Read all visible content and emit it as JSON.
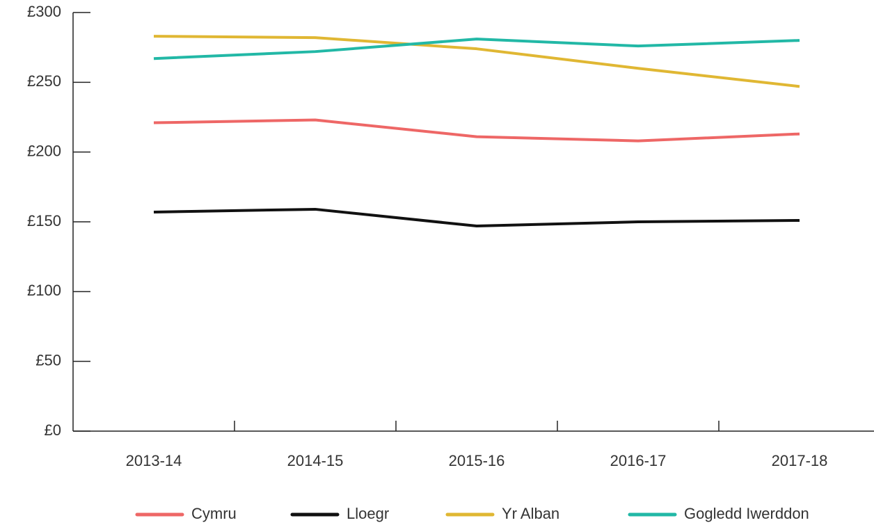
{
  "chart_data": {
    "type": "line",
    "categories": [
      "2013-14",
      "2014-15",
      "2015-16",
      "2016-17",
      "2017-18"
    ],
    "series": [
      {
        "name": "Cymru",
        "color": "#ee6766",
        "values": [
          221,
          223,
          211,
          208,
          213
        ]
      },
      {
        "name": "Lloegr",
        "color": "#111111",
        "values": [
          157,
          159,
          147,
          150,
          151
        ]
      },
      {
        "name": "Yr Alban",
        "color": "#e0b733",
        "values": [
          283,
          282,
          274,
          260,
          247
        ]
      },
      {
        "name": "Gogledd Iwerddon",
        "color": "#22b8a6",
        "values": [
          267,
          272,
          281,
          276,
          280
        ]
      }
    ],
    "ylim": [
      0,
      300
    ],
    "yticks": [
      {
        "value": 0,
        "label": "£0"
      },
      {
        "value": 50,
        "label": "£50"
      },
      {
        "value": 100,
        "label": "£100"
      },
      {
        "value": 150,
        "label": "£150"
      },
      {
        "value": 200,
        "label": "£200"
      },
      {
        "value": 250,
        "label": "£250"
      },
      {
        "value": 300,
        "label": "£300"
      }
    ],
    "legend": "bottom"
  }
}
